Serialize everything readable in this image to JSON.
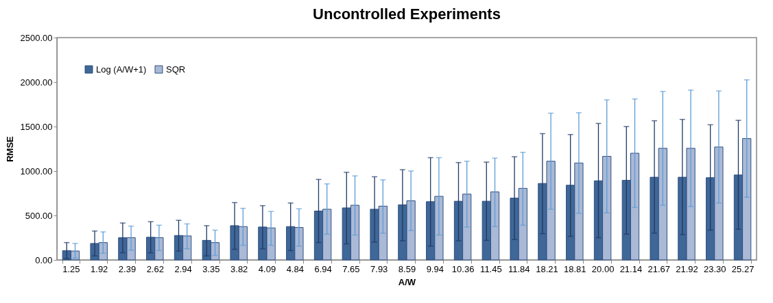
{
  "chart_data": {
    "type": "bar",
    "title": "Uncontrolled Experiments",
    "xlabel": "A/W",
    "ylabel": "RMSE",
    "categories": [
      "1.25",
      "1.92",
      "2.39",
      "2.62",
      "2.94",
      "3.35",
      "3.82",
      "4.09",
      "4.84",
      "6.94",
      "7.65",
      "7.93",
      "8.59",
      "9.94",
      "10.36",
      "11.45",
      "11.84",
      "18.21",
      "18.81",
      "20.00",
      "21.14",
      "21.67",
      "21.92",
      "23.30",
      "25.27"
    ],
    "series": [
      {
        "name": "Log (A/W+1)",
        "color": "#3f6797",
        "values": [
          105,
          185,
          250,
          255,
          275,
          220,
          385,
          370,
          375,
          550,
          585,
          570,
          620,
          655,
          660,
          660,
          695,
          860,
          840,
          890,
          895,
          930,
          930,
          925,
          955
        ],
        "errors": [
          [
            15,
            195
          ],
          [
            45,
            325
          ],
          [
            80,
            415
          ],
          [
            80,
            430
          ],
          [
            100,
            445
          ],
          [
            45,
            385
          ],
          [
            120,
            645
          ],
          [
            125,
            610
          ],
          [
            105,
            640
          ],
          [
            195,
            905
          ],
          [
            180,
            985
          ],
          [
            200,
            935
          ],
          [
            215,
            1015
          ],
          [
            155,
            1150
          ],
          [
            215,
            1095
          ],
          [
            220,
            1100
          ],
          [
            230,
            1160
          ],
          [
            295,
            1420
          ],
          [
            265,
            1410
          ],
          [
            250,
            1535
          ],
          [
            290,
            1500
          ],
          [
            300,
            1565
          ],
          [
            285,
            1580
          ],
          [
            335,
            1520
          ],
          [
            345,
            1570
          ]
        ]
      },
      {
        "name": "SQR",
        "color": "#aab9d6",
        "values": [
          100,
          195,
          250,
          250,
          270,
          195,
          375,
          360,
          365,
          570,
          615,
          605,
          665,
          715,
          740,
          765,
          805,
          1110,
          1090,
          1165,
          1200,
          1255,
          1255,
          1270,
          1365
        ],
        "errors": [
          [
            20,
            185
          ],
          [
            75,
            315
          ],
          [
            110,
            380
          ],
          [
            105,
            390
          ],
          [
            125,
            405
          ],
          [
            50,
            335
          ],
          [
            165,
            580
          ],
          [
            165,
            545
          ],
          [
            155,
            575
          ],
          [
            290,
            855
          ],
          [
            280,
            945
          ],
          [
            300,
            900
          ],
          [
            330,
            1000
          ],
          [
            280,
            1150
          ],
          [
            370,
            1110
          ],
          [
            375,
            1145
          ],
          [
            390,
            1210
          ],
          [
            570,
            1650
          ],
          [
            525,
            1655
          ],
          [
            530,
            1800
          ],
          [
            590,
            1810
          ],
          [
            615,
            1895
          ],
          [
            600,
            1910
          ],
          [
            640,
            1900
          ],
          [
            705,
            2025
          ]
        ]
      }
    ],
    "ylim": [
      0,
      2500
    ],
    "yticks": [
      {
        "value": 0,
        "label": "0.00"
      },
      {
        "value": 500,
        "label": "500.00"
      },
      {
        "value": 1000,
        "label": "1000.00"
      },
      {
        "value": 1500,
        "label": "1500.00"
      },
      {
        "value": 2000,
        "label": "2000.00"
      },
      {
        "value": 2500,
        "label": "2500.00"
      }
    ],
    "grid": false,
    "legend": "top left"
  }
}
